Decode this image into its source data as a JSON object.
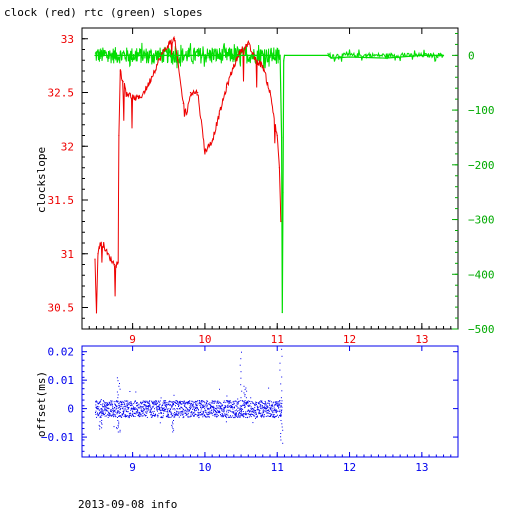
{
  "header": {
    "title": "clock (red) rtc (green) slopes"
  },
  "footer": {
    "text": "2013-09-08 info"
  },
  "chart_data": [
    {
      "type": "line",
      "title": "clock (red) rtc (green) slopes",
      "xlabel": "",
      "ylabel": "clockslope",
      "xlim": [
        8.3,
        13.5
      ],
      "ylim_left": [
        30.3,
        33.1
      ],
      "ylim_right": [
        -500,
        50
      ],
      "x_ticks": [
        "9",
        "10",
        "11",
        "12",
        "13"
      ],
      "y_ticks_left": [
        "30.5",
        "31",
        "31.5",
        "32",
        "32.5",
        "33"
      ],
      "y_ticks_right": [
        "0",
        "−100",
        "−200",
        "−300",
        "−400",
        "−500"
      ],
      "grid": false,
      "colors": {
        "red": "#ee0000",
        "green": "#00dd00",
        "black": "#000000"
      },
      "series": [
        {
          "name": "clock",
          "color": "#ee0000",
          "axis": "left",
          "x": [
            8.48,
            8.5,
            8.52,
            8.55,
            8.6,
            8.65,
            8.7,
            8.75,
            8.8,
            8.81,
            8.83,
            8.87,
            8.92,
            9.0,
            9.1,
            9.2,
            9.3,
            9.4,
            9.5,
            9.58,
            9.62,
            9.7,
            9.75,
            9.8,
            9.9,
            10.0,
            10.1,
            10.2,
            10.3,
            10.4,
            10.5,
            10.6,
            10.7,
            10.8,
            10.9,
            11.0,
            11.03,
            11.05
          ],
          "y": [
            30.95,
            30.45,
            31.0,
            31.1,
            31.08,
            31.0,
            30.95,
            30.9,
            30.92,
            32.1,
            32.7,
            32.6,
            32.5,
            32.45,
            32.45,
            32.55,
            32.7,
            32.85,
            32.95,
            33.0,
            32.8,
            32.4,
            32.3,
            32.5,
            32.5,
            31.95,
            32.05,
            32.3,
            32.55,
            32.75,
            32.9,
            32.95,
            32.8,
            32.75,
            32.5,
            32.1,
            31.8,
            31.3
          ]
        },
        {
          "name": "rtc",
          "color": "#00dd00",
          "axis": "right",
          "x": [
            8.48,
            11.04,
            11.06,
            11.07,
            11.08,
            11.09,
            11.1,
            11.7,
            11.75,
            12.0,
            12.5,
            13.0,
            13.3
          ],
          "y": [
            0,
            0,
            -150,
            -470,
            -250,
            -10,
            0,
            0,
            -5,
            -3,
            -5,
            0,
            0
          ],
          "band_start": 8.48,
          "band_end": 11.04,
          "band_amplitude": 15
        }
      ]
    },
    {
      "type": "scatter",
      "title": "",
      "xlabel": "",
      "ylabel": "offset(ms)",
      "xlim": [
        8.3,
        13.5
      ],
      "ylim": [
        -0.017,
        0.022
      ],
      "x_ticks": [
        "9",
        "10",
        "11",
        "12",
        "13"
      ],
      "y_ticks": [
        "−0.01",
        "0",
        "0.01",
        "0.02"
      ],
      "grid": false,
      "colors": {
        "blue": "#0000ee"
      },
      "series": [
        {
          "name": "offset",
          "color": "#0000ee",
          "x_start": 8.48,
          "x_end": 11.06,
          "y_center": 0.0,
          "y_spread": 0.003,
          "outliers": [
            {
              "x": 8.55,
              "y": -0.007
            },
            {
              "x": 8.8,
              "y": 0.011
            },
            {
              "x": 8.8,
              "y": -0.008
            },
            {
              "x": 9.55,
              "y": -0.008
            },
            {
              "x": 10.5,
              "y": 0.02
            },
            {
              "x": 10.55,
              "y": 0.008
            },
            {
              "x": 11.05,
              "y": 0.021
            },
            {
              "x": 11.05,
              "y": -0.012
            }
          ]
        }
      ]
    }
  ]
}
